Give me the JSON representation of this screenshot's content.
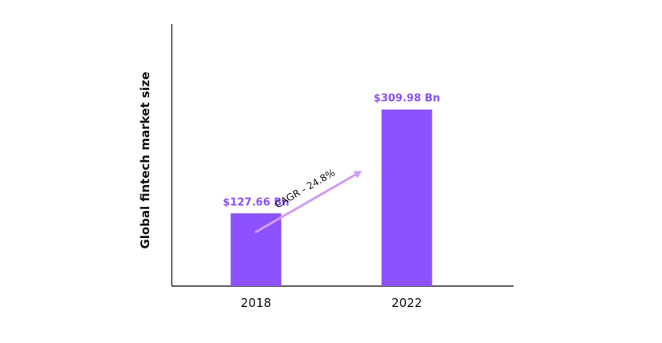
{
  "chart_data": {
    "type": "bar",
    "categories": [
      "2018",
      "2022"
    ],
    "values": [
      127.66,
      309.98
    ],
    "data_labels": [
      "$127.66 Bn",
      "$309.98 Bn"
    ],
    "title": "",
    "xlabel": "",
    "ylabel": "Global fintech market size",
    "ylim": [
      0,
      460
    ],
    "grid": false,
    "legend": "none",
    "annotation": "CAGR - 24.8%",
    "colors": {
      "bar": "#8c52ff",
      "label": "#8c52ff",
      "arrow": "#d29cf2",
      "axis": "#111111",
      "text": "#111111"
    }
  }
}
